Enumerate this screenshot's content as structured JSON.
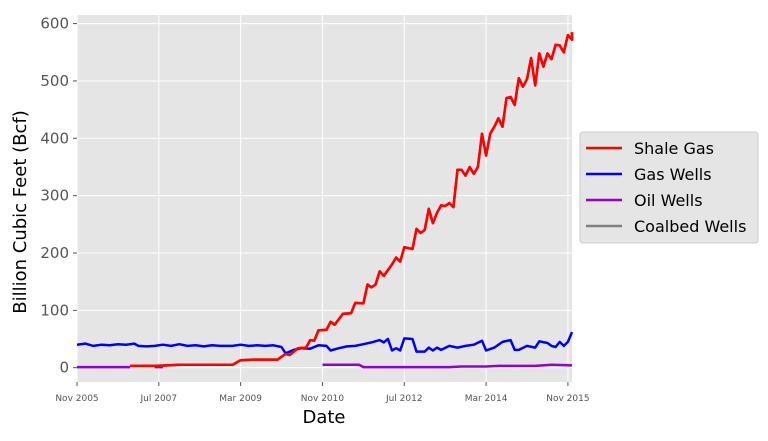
{
  "chart_data": {
    "type": "line",
    "xlabel": "Date",
    "ylabel": "Billion Cubic Feet (Bcf)",
    "x_ticks": [
      "Nov 2005",
      "Jul 2007",
      "Mar 2009",
      "Nov 2010",
      "Jul 2012",
      "Mar 2014",
      "Nov 2015"
    ],
    "y_ticks": [
      "0",
      "100",
      "200",
      "300",
      "400",
      "500",
      "600"
    ],
    "xlim": [
      "2005-11",
      "2015-12"
    ],
    "ylim": [
      -25,
      615
    ],
    "grid": true,
    "legend_position": "center-right-outside",
    "series": [
      {
        "name": "Shale Gas",
        "color": "#ff0000",
        "points": [
          [
            "2006-12",
            3
          ],
          [
            "2007-03",
            3
          ],
          [
            "2007-06",
            3
          ],
          [
            "2007-09",
            4
          ],
          [
            "2007-12",
            5
          ],
          [
            "2008-03",
            5
          ],
          [
            "2008-06",
            5
          ],
          [
            "2008-09",
            5
          ],
          [
            "2009-01",
            5
          ],
          [
            "2009-03",
            13
          ],
          [
            "2009-06",
            14
          ],
          [
            "2009-09",
            14
          ],
          [
            "2009-12",
            14
          ],
          [
            "2010-02",
            24
          ],
          [
            "2010-03",
            22
          ],
          [
            "2010-05",
            34
          ],
          [
            "2010-07",
            35
          ],
          [
            "2010-08",
            48
          ],
          [
            "2010-09",
            47
          ],
          [
            "2010-10",
            65
          ],
          [
            "2010-12",
            66
          ],
          [
            "2011-01",
            80
          ],
          [
            "2011-02",
            75
          ],
          [
            "2011-04",
            94
          ],
          [
            "2011-06",
            95
          ],
          [
            "2011-07",
            113
          ],
          [
            "2011-09",
            112
          ],
          [
            "2011-10",
            145
          ],
          [
            "2011-11",
            140
          ],
          [
            "2011-12",
            145
          ],
          [
            "2012-01",
            168
          ],
          [
            "2012-02",
            160
          ],
          [
            "2012-04",
            180
          ],
          [
            "2012-05",
            192
          ],
          [
            "2012-06",
            185
          ],
          [
            "2012-07",
            210
          ],
          [
            "2012-09",
            207
          ],
          [
            "2012-10",
            242
          ],
          [
            "2012-11",
            235
          ],
          [
            "2012-12",
            240
          ],
          [
            "2013-01",
            277
          ],
          [
            "2013-02",
            252
          ],
          [
            "2013-03",
            270
          ],
          [
            "2013-04",
            283
          ],
          [
            "2013-05",
            282
          ],
          [
            "2013-06",
            287
          ],
          [
            "2013-07",
            280
          ],
          [
            "2013-08",
            345
          ],
          [
            "2013-09",
            345
          ],
          [
            "2013-10",
            335
          ],
          [
            "2013-11",
            350
          ],
          [
            "2013-12",
            338
          ],
          [
            "2014-01",
            350
          ],
          [
            "2014-02",
            408
          ],
          [
            "2014-03",
            370
          ],
          [
            "2014-04",
            408
          ],
          [
            "2014-05",
            420
          ],
          [
            "2014-06",
            435
          ],
          [
            "2014-07",
            420
          ],
          [
            "2014-08",
            470
          ],
          [
            "2014-09",
            472
          ],
          [
            "2014-10",
            458
          ],
          [
            "2014-11",
            505
          ],
          [
            "2014-12",
            490
          ],
          [
            "2015-01",
            503
          ],
          [
            "2015-02",
            540
          ],
          [
            "2015-03",
            492
          ],
          [
            "2015-04",
            548
          ],
          [
            "2015-05",
            525
          ],
          [
            "2015-06",
            548
          ],
          [
            "2015-07",
            538
          ],
          [
            "2015-08",
            563
          ],
          [
            "2015-09",
            562
          ],
          [
            "2015-10",
            550
          ],
          [
            "2015-11",
            580
          ],
          [
            "2015-12",
            572
          ],
          [
            "2015-12",
            585
          ]
        ]
      },
      {
        "name": "Gas Wells",
        "color": "#0000ff",
        "points": [
          [
            "2005-11",
            40
          ],
          [
            "2006-01",
            42
          ],
          [
            "2006-03",
            38
          ],
          [
            "2006-05",
            40
          ],
          [
            "2006-07",
            39
          ],
          [
            "2006-09",
            41
          ],
          [
            "2006-11",
            40
          ],
          [
            "2007-01",
            42
          ],
          [
            "2007-02",
            38
          ],
          [
            "2007-04",
            37
          ],
          [
            "2007-06",
            38
          ],
          [
            "2007-08",
            40
          ],
          [
            "2007-10",
            38
          ],
          [
            "2007-12",
            41
          ],
          [
            "2008-02",
            38
          ],
          [
            "2008-04",
            39
          ],
          [
            "2008-06",
            37
          ],
          [
            "2008-08",
            39
          ],
          [
            "2008-10",
            38
          ],
          [
            "2009-01",
            38
          ],
          [
            "2009-03",
            40
          ],
          [
            "2009-05",
            38
          ],
          [
            "2009-07",
            39
          ],
          [
            "2009-09",
            38
          ],
          [
            "2009-11",
            39
          ],
          [
            "2010-01",
            36
          ],
          [
            "2010-02",
            25
          ],
          [
            "2010-04",
            31
          ],
          [
            "2010-06",
            34
          ],
          [
            "2010-08",
            33
          ],
          [
            "2010-10",
            39
          ],
          [
            "2010-12",
            38
          ],
          [
            "2011-01",
            30
          ],
          [
            "2011-03",
            34
          ],
          [
            "2011-05",
            37
          ],
          [
            "2011-07",
            38
          ],
          [
            "2011-09",
            41
          ],
          [
            "2011-11",
            44
          ],
          [
            "2012-01",
            48
          ],
          [
            "2012-02",
            44
          ],
          [
            "2012-03",
            50
          ],
          [
            "2012-04",
            30
          ],
          [
            "2012-05",
            34
          ],
          [
            "2012-06",
            30
          ],
          [
            "2012-07",
            51
          ],
          [
            "2012-09",
            50
          ],
          [
            "2012-10",
            28
          ],
          [
            "2012-12",
            28
          ],
          [
            "2013-01",
            35
          ],
          [
            "2013-02",
            30
          ],
          [
            "2013-03",
            35
          ],
          [
            "2013-04",
            31
          ],
          [
            "2013-06",
            38
          ],
          [
            "2013-08",
            35
          ],
          [
            "2013-10",
            38
          ],
          [
            "2013-12",
            40
          ],
          [
            "2014-02",
            47
          ],
          [
            "2014-03",
            30
          ],
          [
            "2014-05",
            35
          ],
          [
            "2014-07",
            45
          ],
          [
            "2014-09",
            48
          ],
          [
            "2014-10",
            31
          ],
          [
            "2014-11",
            31
          ],
          [
            "2015-01",
            38
          ],
          [
            "2015-03",
            35
          ],
          [
            "2015-04",
            46
          ],
          [
            "2015-06",
            43
          ],
          [
            "2015-07",
            38
          ],
          [
            "2015-08",
            36
          ],
          [
            "2015-09",
            45
          ],
          [
            "2015-10",
            38
          ],
          [
            "2015-11",
            45
          ],
          [
            "2015-12",
            62
          ]
        ]
      },
      {
        "name": "Oil Wells",
        "color": "#9400d3",
        "points": [
          [
            "2005-11",
            1
          ],
          [
            "2006-06",
            1
          ],
          [
            "2006-12",
            1
          ],
          [
            "2007-05",
            1
          ],
          [
            "2007-06",
            1
          ],
          [
            "2007-08",
            1
          ],
          [
            "2007-09",
            1
          ]
        ],
        "segments": [
          [
            [
              "2005-11",
              1
            ],
            [
              "2006-12",
              1
            ]
          ],
          [
            [
              "2007-06",
              1
            ],
            [
              "2007-08",
              1
            ]
          ],
          [
            [
              "2010-11",
              5
            ],
            [
              "2011-06",
              5
            ],
            [
              "2011-08",
              5
            ],
            [
              "2011-09",
              1
            ],
            [
              "2012-06",
              1
            ],
            [
              "2013-06",
              1
            ],
            [
              "2013-09",
              2
            ],
            [
              "2014-03",
              2
            ],
            [
              "2014-06",
              3
            ],
            [
              "2015-03",
              3
            ],
            [
              "2015-07",
              5
            ],
            [
              "2015-12",
              4
            ]
          ]
        ]
      },
      {
        "name": "Coalbed Wells",
        "color": "#808080",
        "points": []
      }
    ]
  }
}
